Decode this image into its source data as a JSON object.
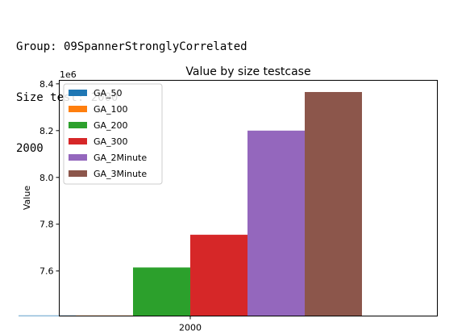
{
  "output": {
    "lines": [
      "Group: 09SpannerStronglyCorrelated",
      "Size test: 2000",
      "2000"
    ]
  },
  "chart_data": {
    "type": "bar",
    "title": "Value by size testcase",
    "xlabel": "",
    "ylabel": "Value",
    "y_offset_label": "1e6",
    "y_scale": 1000000,
    "categories": [
      "2000"
    ],
    "ylim": [
      7.4075,
      8.415
    ],
    "yticks": [
      7.6,
      7.8,
      8.0,
      8.2,
      8.4
    ],
    "ytick_labels": [
      "7.6",
      "7.8",
      "8.0",
      "8.2",
      "8.4"
    ],
    "grid": false,
    "legend_position": "upper-left",
    "series": [
      {
        "name": "GA_50",
        "values": [
          7.41
        ],
        "color": "#1f77b4"
      },
      {
        "name": "GA_100",
        "values": [
          7.41
        ],
        "color": "#ff7f0e"
      },
      {
        "name": "GA_200",
        "values": [
          7.615
        ],
        "color": "#2ca02c"
      },
      {
        "name": "GA_300",
        "values": [
          7.755
        ],
        "color": "#d62728"
      },
      {
        "name": "GA_2Minute",
        "values": [
          8.2
        ],
        "color": "#9467bd"
      },
      {
        "name": "GA_3Minute",
        "values": [
          8.365
        ],
        "color": "#8c564b"
      }
    ]
  }
}
